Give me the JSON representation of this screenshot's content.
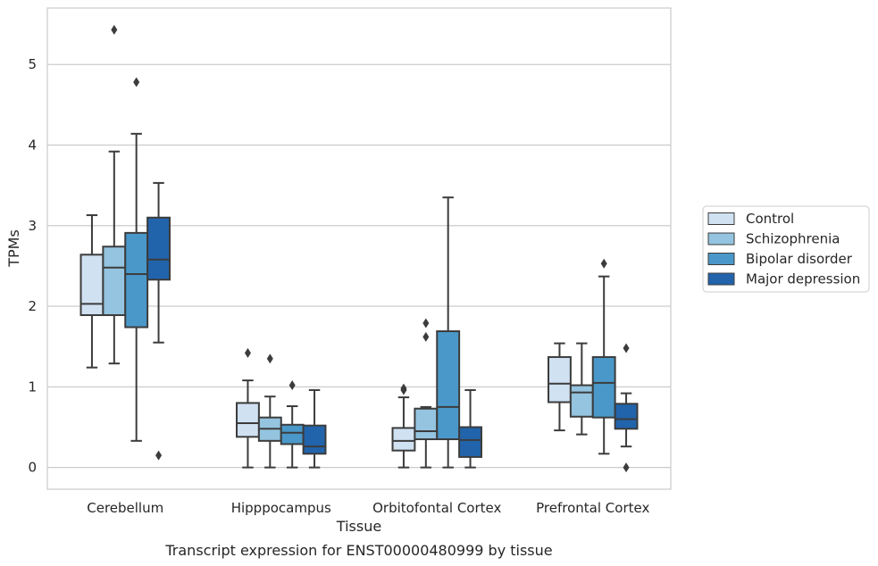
{
  "chart_data": {
    "type": "box",
    "xlabel": "Tissue",
    "ylabel": "TPMs",
    "caption": "Transcript expression for ENST00000480999 by tissue",
    "ylim": [
      -0.27,
      5.7
    ],
    "yticks": [
      0,
      1,
      2,
      3,
      4,
      5
    ],
    "grid": true,
    "legend_placement": "right",
    "categories": [
      "Cerebellum",
      "Hipppocampus",
      "Orbitofontal Cortex",
      "Prefrontal Cortex"
    ],
    "series": [
      {
        "name": "Control",
        "color": "#d0e1f2",
        "boxes": [
          {
            "whislo": 1.24,
            "q1": 1.89,
            "med": 2.03,
            "q3": 2.64,
            "whishi": 3.13,
            "fliers": []
          },
          {
            "whislo": 0.0,
            "q1": 0.38,
            "med": 0.55,
            "q3": 0.8,
            "whishi": 1.08,
            "fliers": [
              1.42
            ]
          },
          {
            "whislo": 0.0,
            "q1": 0.21,
            "med": 0.33,
            "q3": 0.49,
            "whishi": 0.87,
            "fliers": [
              0.96,
              0.98
            ]
          },
          {
            "whislo": 0.46,
            "q1": 0.81,
            "med": 1.04,
            "q3": 1.37,
            "whishi": 1.54,
            "fliers": []
          }
        ]
      },
      {
        "name": "Schizophrenia",
        "color": "#94c4df",
        "boxes": [
          {
            "whislo": 1.29,
            "q1": 1.89,
            "med": 2.48,
            "q3": 2.74,
            "whishi": 3.92,
            "fliers": [
              5.43
            ]
          },
          {
            "whislo": 0.0,
            "q1": 0.33,
            "med": 0.48,
            "q3": 0.62,
            "whishi": 0.88,
            "fliers": [
              1.35
            ]
          },
          {
            "whislo": 0.0,
            "q1": 0.35,
            "med": 0.45,
            "q3": 0.73,
            "whishi": 0.75,
            "fliers": [
              1.62,
              1.79
            ]
          },
          {
            "whislo": 0.41,
            "q1": 0.63,
            "med": 0.93,
            "q3": 1.02,
            "whishi": 1.54,
            "fliers": []
          }
        ]
      },
      {
        "name": "Bipolar disorder",
        "color": "#4a98c9",
        "boxes": [
          {
            "whislo": 0.33,
            "q1": 1.74,
            "med": 2.4,
            "q3": 2.91,
            "whishi": 4.14,
            "fliers": [
              4.78
            ]
          },
          {
            "whislo": 0.0,
            "q1": 0.29,
            "med": 0.43,
            "q3": 0.53,
            "whishi": 0.76,
            "fliers": [
              1.02
            ]
          },
          {
            "whislo": 0.0,
            "q1": 0.35,
            "med": 0.75,
            "q3": 1.69,
            "whishi": 3.35,
            "fliers": []
          },
          {
            "whislo": 0.17,
            "q1": 0.62,
            "med": 1.05,
            "q3": 1.37,
            "whishi": 2.37,
            "fliers": [
              2.53
            ]
          }
        ]
      },
      {
        "name": "Major depression",
        "color": "#2164ab",
        "boxes": [
          {
            "whislo": 1.55,
            "q1": 2.33,
            "med": 2.58,
            "q3": 3.1,
            "whishi": 3.53,
            "fliers": [
              0.15
            ]
          },
          {
            "whislo": 0.0,
            "q1": 0.17,
            "med": 0.26,
            "q3": 0.52,
            "whishi": 0.96,
            "fliers": []
          },
          {
            "whislo": 0.0,
            "q1": 0.13,
            "med": 0.34,
            "q3": 0.5,
            "whishi": 0.96,
            "fliers": []
          },
          {
            "whislo": 0.26,
            "q1": 0.48,
            "med": 0.6,
            "q3": 0.79,
            "whishi": 0.92,
            "fliers": [
              1.48,
              0.0
            ]
          }
        ]
      }
    ]
  }
}
